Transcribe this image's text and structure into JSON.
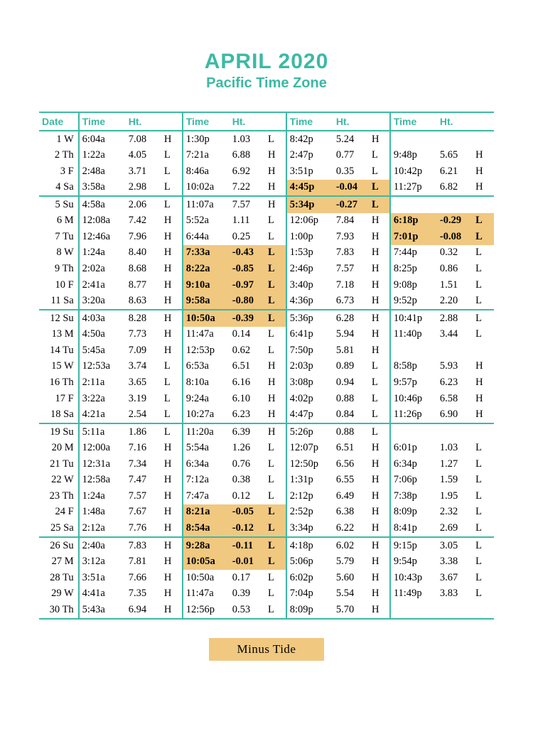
{
  "title": "APRIL 2020",
  "subtitle": "Pacific Time Zone",
  "legend": "Minus Tide",
  "headers": {
    "date": "Date",
    "time": "Time",
    "ht": "Ht."
  },
  "colors": {
    "accent": "#3cb9a4",
    "minus_bg": "#f0c880",
    "text": "#000000",
    "background": "#ffffff"
  },
  "typography": {
    "title_fontsize": 30,
    "subtitle_fontsize": 20,
    "header_fontsize": 14,
    "body_fontsize": 14.5,
    "legend_fontsize": 17
  },
  "week_breaks_after": [
    4,
    11,
    18,
    25
  ],
  "days": [
    {
      "d": 1,
      "w": "W",
      "t": [
        [
          "6:04a",
          "7.08",
          "H"
        ],
        [
          "1:30p",
          "1.03",
          "L"
        ],
        [
          "8:42p",
          "5.24",
          "H"
        ],
        [
          "",
          "",
          ""
        ]
      ]
    },
    {
      "d": 2,
      "w": "Th",
      "t": [
        [
          "1:22a",
          "4.05",
          "L"
        ],
        [
          "7:21a",
          "6.88",
          "H"
        ],
        [
          "2:47p",
          "0.77",
          "L"
        ],
        [
          "9:48p",
          "5.65",
          "H"
        ]
      ]
    },
    {
      "d": 3,
      "w": "F",
      "t": [
        [
          "2:48a",
          "3.71",
          "L"
        ],
        [
          "8:46a",
          "6.92",
          "H"
        ],
        [
          "3:51p",
          "0.35",
          "L"
        ],
        [
          "10:42p",
          "6.21",
          "H"
        ]
      ]
    },
    {
      "d": 4,
      "w": "Sa",
      "t": [
        [
          "3:58a",
          "2.98",
          "L"
        ],
        [
          "10:02a",
          "7.22",
          "H"
        ],
        [
          "4:45p",
          "-0.04",
          "L",
          true
        ],
        [
          "11:27p",
          "6.82",
          "H"
        ]
      ]
    },
    {
      "d": 5,
      "w": "Su",
      "t": [
        [
          "4:58a",
          "2.06",
          "L"
        ],
        [
          "11:07a",
          "7.57",
          "H"
        ],
        [
          "5:34p",
          "-0.27",
          "L",
          true
        ],
        [
          "",
          "",
          ""
        ]
      ]
    },
    {
      "d": 6,
      "w": "M",
      "t": [
        [
          "12:08a",
          "7.42",
          "H"
        ],
        [
          "5:52a",
          "1.11",
          "L"
        ],
        [
          "12:06p",
          "7.84",
          "H"
        ],
        [
          "6:18p",
          "-0.29",
          "L",
          true
        ]
      ]
    },
    {
      "d": 7,
      "w": "Tu",
      "t": [
        [
          "12:46a",
          "7.96",
          "H"
        ],
        [
          "6:44a",
          "0.25",
          "L"
        ],
        [
          "1:00p",
          "7.93",
          "H"
        ],
        [
          "7:01p",
          "-0.08",
          "L",
          true
        ]
      ]
    },
    {
      "d": 8,
      "w": "W",
      "t": [
        [
          "1:24a",
          "8.40",
          "H"
        ],
        [
          "7:33a",
          "-0.43",
          "L",
          true
        ],
        [
          "1:53p",
          "7.83",
          "H"
        ],
        [
          "7:44p",
          "0.32",
          "L"
        ]
      ]
    },
    {
      "d": 9,
      "w": "Th",
      "t": [
        [
          "2:02a",
          "8.68",
          "H"
        ],
        [
          "8:22a",
          "-0.85",
          "L",
          true
        ],
        [
          "2:46p",
          "7.57",
          "H"
        ],
        [
          "8:25p",
          "0.86",
          "L"
        ]
      ]
    },
    {
      "d": 10,
      "w": "F",
      "t": [
        [
          "2:41a",
          "8.77",
          "H"
        ],
        [
          "9:10a",
          "-0.97",
          "L",
          true
        ],
        [
          "3:40p",
          "7.18",
          "H"
        ],
        [
          "9:08p",
          "1.51",
          "L"
        ]
      ]
    },
    {
      "d": 11,
      "w": "Sa",
      "t": [
        [
          "3:20a",
          "8.63",
          "H"
        ],
        [
          "9:58a",
          "-0.80",
          "L",
          true
        ],
        [
          "4:36p",
          "6.73",
          "H"
        ],
        [
          "9:52p",
          "2.20",
          "L"
        ]
      ]
    },
    {
      "d": 12,
      "w": "Su",
      "t": [
        [
          "4:03a",
          "8.28",
          "H"
        ],
        [
          "10:50a",
          "-0.39",
          "L",
          true
        ],
        [
          "5:36p",
          "6.28",
          "H"
        ],
        [
          "10:41p",
          "2.88",
          "L"
        ]
      ]
    },
    {
      "d": 13,
      "w": "M",
      "t": [
        [
          "4:50a",
          "7.73",
          "H"
        ],
        [
          "11:47a",
          "0.14",
          "L"
        ],
        [
          "6:41p",
          "5.94",
          "H"
        ],
        [
          "11:40p",
          "3.44",
          "L"
        ]
      ]
    },
    {
      "d": 14,
      "w": "Tu",
      "t": [
        [
          "5:45a",
          "7.09",
          "H"
        ],
        [
          "12:53p",
          "0.62",
          "L"
        ],
        [
          "7:50p",
          "5.81",
          "H"
        ],
        [
          "",
          "",
          ""
        ]
      ]
    },
    {
      "d": 15,
      "w": "W",
      "t": [
        [
          "12:53a",
          "3.74",
          "L"
        ],
        [
          "6:53a",
          "6.51",
          "H"
        ],
        [
          "2:03p",
          "0.89",
          "L"
        ],
        [
          "8:58p",
          "5.93",
          "H"
        ]
      ]
    },
    {
      "d": 16,
      "w": "Th",
      "t": [
        [
          "2:11a",
          "3.65",
          "L"
        ],
        [
          "8:10a",
          "6.16",
          "H"
        ],
        [
          "3:08p",
          "0.94",
          "L"
        ],
        [
          "9:57p",
          "6.23",
          "H"
        ]
      ]
    },
    {
      "d": 17,
      "w": "F",
      "t": [
        [
          "3:22a",
          "3.19",
          "L"
        ],
        [
          "9:24a",
          "6.10",
          "H"
        ],
        [
          "4:02p",
          "0.88",
          "L"
        ],
        [
          "10:46p",
          "6.58",
          "H"
        ]
      ]
    },
    {
      "d": 18,
      "w": "Sa",
      "t": [
        [
          "4:21a",
          "2.54",
          "L"
        ],
        [
          "10:27a",
          "6.23",
          "H"
        ],
        [
          "4:47p",
          "0.84",
          "L"
        ],
        [
          "11:26p",
          "6.90",
          "H"
        ]
      ]
    },
    {
      "d": 19,
      "w": "Su",
      "t": [
        [
          "5:11a",
          "1.86",
          "L"
        ],
        [
          "11:20a",
          "6.39",
          "H"
        ],
        [
          "5:26p",
          "0.88",
          "L"
        ],
        [
          "",
          "",
          ""
        ]
      ]
    },
    {
      "d": 20,
      "w": "M",
      "t": [
        [
          "12:00a",
          "7.16",
          "H"
        ],
        [
          "5:54a",
          "1.26",
          "L"
        ],
        [
          "12:07p",
          "6.51",
          "H"
        ],
        [
          "6:01p",
          "1.03",
          "L"
        ]
      ]
    },
    {
      "d": 21,
      "w": "Tu",
      "t": [
        [
          "12:31a",
          "7.34",
          "H"
        ],
        [
          "6:34a",
          "0.76",
          "L"
        ],
        [
          "12:50p",
          "6.56",
          "H"
        ],
        [
          "6:34p",
          "1.27",
          "L"
        ]
      ]
    },
    {
      "d": 22,
      "w": "W",
      "t": [
        [
          "12:58a",
          "7.47",
          "H"
        ],
        [
          "7:12a",
          "0.38",
          "L"
        ],
        [
          "1:31p",
          "6.55",
          "H"
        ],
        [
          "7:06p",
          "1.59",
          "L"
        ]
      ]
    },
    {
      "d": 23,
      "w": "Th",
      "t": [
        [
          "1:24a",
          "7.57",
          "H"
        ],
        [
          "7:47a",
          "0.12",
          "L"
        ],
        [
          "2:12p",
          "6.49",
          "H"
        ],
        [
          "7:38p",
          "1.95",
          "L"
        ]
      ]
    },
    {
      "d": 24,
      "w": "F",
      "t": [
        [
          "1:48a",
          "7.67",
          "H"
        ],
        [
          "8:21a",
          "-0.05",
          "L",
          true
        ],
        [
          "2:52p",
          "6.38",
          "H"
        ],
        [
          "8:09p",
          "2.32",
          "L"
        ]
      ]
    },
    {
      "d": 25,
      "w": "Sa",
      "t": [
        [
          "2:12a",
          "7.76",
          "H"
        ],
        [
          "8:54a",
          "-0.12",
          "L",
          true
        ],
        [
          "3:34p",
          "6.22",
          "H"
        ],
        [
          "8:41p",
          "2.69",
          "L"
        ]
      ]
    },
    {
      "d": 26,
      "w": "Su",
      "t": [
        [
          "2:40a",
          "7.83",
          "H"
        ],
        [
          "9:28a",
          "-0.11",
          "L",
          true
        ],
        [
          "4:18p",
          "6.02",
          "H"
        ],
        [
          "9:15p",
          "3.05",
          "L"
        ]
      ]
    },
    {
      "d": 27,
      "w": "M",
      "t": [
        [
          "3:12a",
          "7.81",
          "H"
        ],
        [
          "10:05a",
          "-0.01",
          "L",
          true
        ],
        [
          "5:06p",
          "5.79",
          "H"
        ],
        [
          "9:54p",
          "3.38",
          "L"
        ]
      ]
    },
    {
      "d": 28,
      "w": "Tu",
      "t": [
        [
          "3:51a",
          "7.66",
          "H"
        ],
        [
          "10:50a",
          "0.17",
          "L"
        ],
        [
          "6:02p",
          "5.60",
          "H"
        ],
        [
          "10:43p",
          "3.67",
          "L"
        ]
      ]
    },
    {
      "d": 29,
      "w": "W",
      "t": [
        [
          "4:41a",
          "7.35",
          "H"
        ],
        [
          "11:47a",
          "0.39",
          "L"
        ],
        [
          "7:04p",
          "5.54",
          "H"
        ],
        [
          "11:49p",
          "3.83",
          "L"
        ]
      ]
    },
    {
      "d": 30,
      "w": "Th",
      "t": [
        [
          "5:43a",
          "6.94",
          "H"
        ],
        [
          "12:56p",
          "0.53",
          "L"
        ],
        [
          "8:09p",
          "5.70",
          "H"
        ],
        [
          "",
          "",
          ""
        ]
      ]
    }
  ]
}
